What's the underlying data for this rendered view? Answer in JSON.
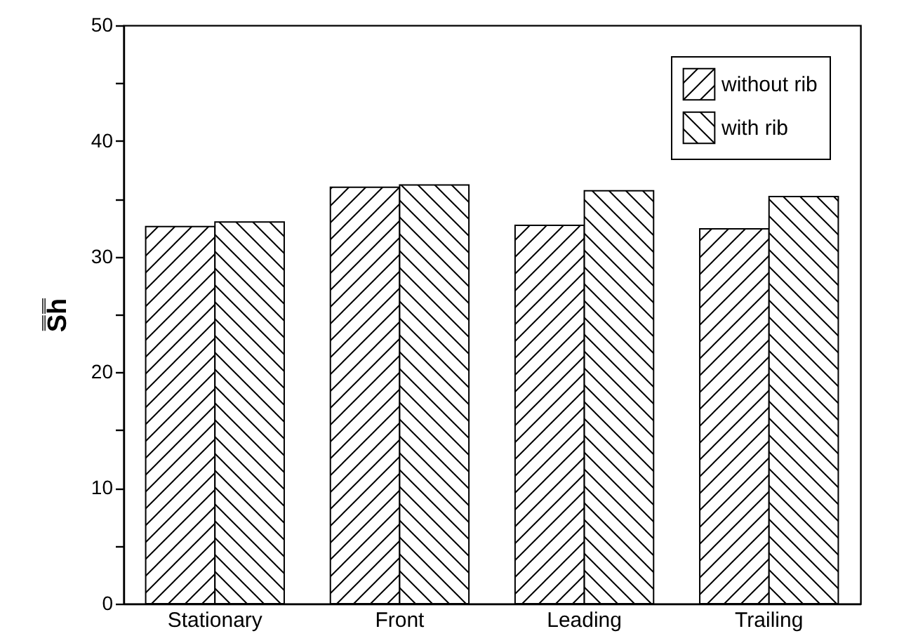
{
  "chart_data": {
    "type": "bar",
    "ylabel": "S̿h̿",
    "categories": [
      "Stationary",
      "Front",
      "Leading",
      "Trailing"
    ],
    "series": [
      {
        "name": "without rib",
        "color": "#000000",
        "values": [
          32.6,
          36.0,
          32.7,
          32.4
        ]
      },
      {
        "name": "with rib",
        "color": "#000000",
        "values": [
          33.0,
          36.2,
          35.7,
          35.2
        ]
      }
    ],
    "ylim": [
      0,
      50
    ],
    "yticks": [
      0,
      {
        "value": 5,
        "label": null
      },
      10,
      {
        "value": 15,
        "label": null
      },
      20,
      {
        "value": 25,
        "label": null
      },
      30,
      {
        "value": 35,
        "label": null
      },
      40,
      {
        "value": 45,
        "label": null
      },
      50
    ],
    "grid": false,
    "legend": "top right"
  }
}
